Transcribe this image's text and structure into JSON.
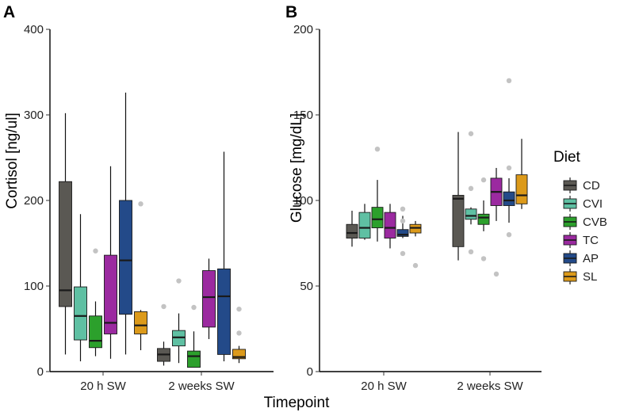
{
  "chart_data": [
    {
      "panel": "A",
      "type": "boxplot",
      "ylabel": "Cortisol [ng/ul]",
      "ylim": [
        0,
        400
      ],
      "yticks": [
        0,
        100,
        200,
        300,
        400
      ],
      "categories": [
        "20 h SW",
        "2 weeks SW"
      ],
      "series": [
        {
          "name": "CD",
          "color": "#5a5853",
          "boxes": [
            {
              "lo": 20,
              "q1": 76,
              "med": 95,
              "q3": 222,
              "hi": 302,
              "outliers": []
            },
            {
              "lo": 7,
              "q1": 12,
              "med": 20,
              "q3": 27,
              "hi": 35,
              "outliers": [
                76
              ]
            }
          ]
        },
        {
          "name": "CVI",
          "color": "#5fc0a3",
          "boxes": [
            {
              "lo": 12,
              "q1": 37,
              "med": 65,
              "q3": 99,
              "hi": 184,
              "outliers": []
            },
            {
              "lo": 10,
              "q1": 30,
              "med": 40,
              "q3": 48,
              "hi": 68,
              "outliers": [
                106
              ]
            }
          ]
        },
        {
          "name": "CVB",
          "color": "#2ca02c",
          "boxes": [
            {
              "lo": 18,
              "q1": 28,
              "med": 36,
              "q3": 65,
              "hi": 82,
              "outliers": [
                141
              ]
            },
            {
              "lo": 5,
              "q1": 5,
              "med": 18,
              "q3": 24,
              "hi": 47,
              "outliers": [
                75
              ]
            }
          ]
        },
        {
          "name": "TC",
          "color": "#9b2aa0",
          "boxes": [
            {
              "lo": 15,
              "q1": 44,
              "med": 57,
              "q3": 136,
              "hi": 240,
              "outliers": []
            },
            {
              "lo": 38,
              "q1": 52,
              "med": 87,
              "q3": 118,
              "hi": 132,
              "outliers": []
            }
          ]
        },
        {
          "name": "AP",
          "color": "#234a89",
          "boxes": [
            {
              "lo": 20,
              "q1": 67,
              "med": 130,
              "q3": 200,
              "hi": 326,
              "outliers": []
            },
            {
              "lo": 12,
              "q1": 20,
              "med": 88,
              "q3": 120,
              "hi": 257,
              "outliers": []
            }
          ]
        },
        {
          "name": "SL",
          "color": "#dc9a1a",
          "boxes": [
            {
              "lo": 25,
              "q1": 44,
              "med": 54,
              "q3": 70,
              "hi": 72,
              "outliers": [
                196
              ]
            },
            {
              "lo": 10,
              "q1": 15,
              "med": 17,
              "q3": 26,
              "hi": 30,
              "outliers": [
                45,
                73
              ]
            }
          ]
        }
      ]
    },
    {
      "panel": "B",
      "type": "boxplot",
      "ylabel": "Glucose [mg/dL]",
      "ylim": [
        0,
        200
      ],
      "yticks": [
        0,
        50,
        100,
        150,
        200
      ],
      "categories": [
        "20 h SW",
        "2 weeks SW"
      ],
      "series": [
        {
          "name": "CD",
          "color": "#5a5853",
          "boxes": [
            {
              "lo": 73,
              "q1": 78,
              "med": 81,
              "q3": 86,
              "hi": 94,
              "outliers": []
            },
            {
              "lo": 65,
              "q1": 73,
              "med": 101,
              "q3": 103,
              "hi": 140,
              "outliers": []
            }
          ]
        },
        {
          "name": "CVI",
          "color": "#5fc0a3",
          "boxes": [
            {
              "lo": 77,
              "q1": 78,
              "med": 84,
              "q3": 93,
              "hi": 98,
              "outliers": []
            },
            {
              "lo": 86,
              "q1": 89,
              "med": 91,
              "q3": 95,
              "hi": 96,
              "outliers": [
                139,
                107,
                70
              ]
            }
          ]
        },
        {
          "name": "CVB",
          "color": "#2ca02c",
          "boxes": [
            {
              "lo": 76,
              "q1": 84,
              "med": 89,
              "q3": 96,
              "hi": 112,
              "outliers": [
                130
              ]
            },
            {
              "lo": 82,
              "q1": 86,
              "med": 90,
              "q3": 92,
              "hi": 100,
              "outliers": [
                112,
                66
              ]
            }
          ]
        },
        {
          "name": "TC",
          "color": "#9b2aa0",
          "boxes": [
            {
              "lo": 72,
              "q1": 78,
              "med": 84,
              "q3": 93,
              "hi": 98,
              "outliers": []
            },
            {
              "lo": 88,
              "q1": 97,
              "med": 105,
              "q3": 113,
              "hi": 119,
              "outliers": [
                57
              ]
            }
          ]
        },
        {
          "name": "AP",
          "color": "#234a89",
          "boxes": [
            {
              "lo": 78,
              "q1": 79,
              "med": 80,
              "q3": 83,
              "hi": 91,
              "outliers": [
                95,
                88,
                69
              ]
            },
            {
              "lo": 87,
              "q1": 97,
              "med": 100,
              "q3": 105,
              "hi": 113,
              "outliers": [
                170,
                119,
                80
              ]
            }
          ]
        },
        {
          "name": "SL",
          "color": "#dc9a1a",
          "boxes": [
            {
              "lo": 79,
              "q1": 81,
              "med": 84,
              "q3": 86,
              "hi": 88,
              "outliers": [
                62
              ]
            },
            {
              "lo": 95,
              "q1": 98,
              "med": 103,
              "q3": 115,
              "hi": 136,
              "outliers": []
            }
          ]
        }
      ]
    }
  ],
  "shared": {
    "xlabel": "Timepoint",
    "legend_title": "Diet"
  }
}
